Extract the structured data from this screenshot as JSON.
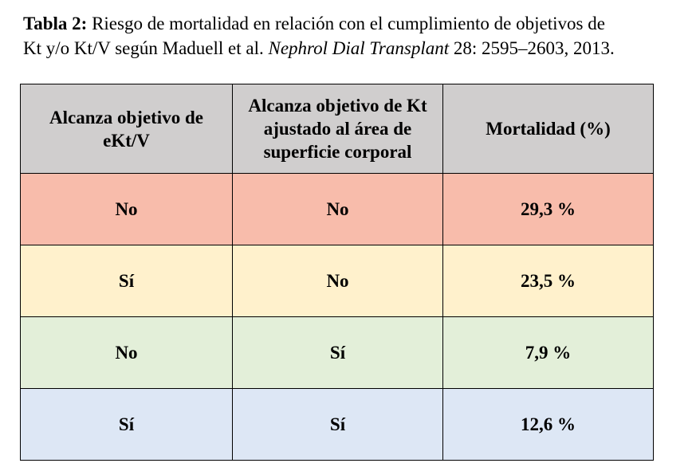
{
  "caption": {
    "label": "Tabla 2:",
    "text_before": "Riesgo de mortalidad en relación con el cumplimiento de objetivos de",
    "text_line2_start": "Kt y/o Kt/V según Maduell et al.",
    "journal": "Nephrol Dial Transplant",
    "citation_end": "28: 2595–2603, 2013."
  },
  "table": {
    "headers": [
      "Alcanza objetivo de eKt/V",
      "Alcanza objetivo de Kt ajustado al área de superficie corporal",
      "Mortalidad (%)"
    ],
    "rows": [
      {
        "ektv": "No",
        "kt_asc": "No",
        "mortality": "29,3 %",
        "color": "#f8bcab"
      },
      {
        "ektv": "Sí",
        "kt_asc": "No",
        "mortality": "23,5 %",
        "color": "#fff1cc"
      },
      {
        "ektv": "No",
        "kt_asc": "Sí",
        "mortality": "7,9 %",
        "color": "#e3efd9"
      },
      {
        "ektv": "Sí",
        "kt_asc": "Sí",
        "mortality": "12,6 %",
        "color": "#dde7f5"
      }
    ],
    "header_color": "#d0cece"
  }
}
